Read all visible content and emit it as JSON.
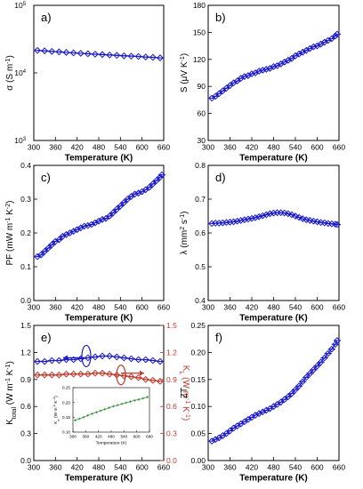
{
  "chart_data": [
    {
      "id": "a",
      "type": "line",
      "panel_label": "a)",
      "xlabel": "Temperature (K)",
      "ylabel": "σ (S m⁻¹)",
      "ylabel_html": "σ (S m<tspan baseline-shift='super' font-size='7'>-1</tspan>)",
      "xlim": [
        300,
        660
      ],
      "ylim": [
        1000,
        100000
      ],
      "yscale": "log",
      "xticks": [
        300,
        360,
        420,
        480,
        540,
        600,
        660
      ],
      "yticks": [
        {
          "value": 1000,
          "label": "10",
          "exp": "3"
        },
        {
          "value": 10000,
          "label": "10",
          "exp": "4"
        },
        {
          "value": 100000,
          "label": "10",
          "exp": "5"
        }
      ],
      "series": [
        {
          "marker": "diamond",
          "color": "#1a1acc",
          "x": [
            310,
            330,
            350,
            370,
            390,
            410,
            430,
            450,
            470,
            490,
            510,
            530,
            550,
            570,
            590,
            610,
            630,
            650
          ],
          "y": [
            21500,
            21200,
            20800,
            20500,
            20100,
            19800,
            19500,
            19200,
            18900,
            18700,
            18400,
            18200,
            17900,
            17700,
            17500,
            17200,
            17000,
            16700
          ]
        }
      ]
    },
    {
      "id": "b",
      "type": "line",
      "panel_label": "b)",
      "xlabel": "Temperature (K)",
      "ylabel": "S (μV K⁻¹)",
      "ylabel_html": "S (μV K<tspan baseline-shift='super' font-size='7'>-1</tspan>)",
      "xlim": [
        300,
        660
      ],
      "ylim": [
        30,
        180
      ],
      "xticks": [
        300,
        360,
        420,
        480,
        540,
        600,
        660
      ],
      "yticks": [
        {
          "value": 30,
          "label": "30"
        },
        {
          "value": 60,
          "label": "60"
        },
        {
          "value": 90,
          "label": "90"
        },
        {
          "value": 120,
          "label": "120"
        },
        {
          "value": 150,
          "label": "150"
        },
        {
          "value": 180,
          "label": "180"
        }
      ],
      "series": [
        {
          "marker": "diamond",
          "color": "#1a1acc",
          "x": [
            310,
            320,
            330,
            340,
            350,
            360,
            370,
            380,
            390,
            400,
            410,
            420,
            430,
            440,
            450,
            460,
            470,
            480,
            490,
            500,
            510,
            520,
            530,
            540,
            550,
            560,
            570,
            580,
            590,
            600,
            610,
            620,
            630,
            640,
            650,
            655
          ],
          "y": [
            77,
            79,
            82,
            85,
            88,
            91,
            94,
            96,
            99,
            101,
            102,
            104,
            105,
            107,
            108,
            109,
            110,
            112,
            113,
            115,
            117,
            119,
            121,
            124,
            126,
            128,
            130,
            132,
            134,
            135,
            137,
            139,
            141,
            143,
            146,
            148
          ]
        }
      ]
    },
    {
      "id": "c",
      "type": "line",
      "panel_label": "c)",
      "xlabel": "Temperature (K)",
      "ylabel": "PF (mW m⁻¹ K⁻²)",
      "ylabel_html": "PF (mW m<tspan baseline-shift='super' font-size='7'>-1</tspan> K<tspan baseline-shift='super' font-size='7'>-2</tspan>)",
      "xlim": [
        300,
        660
      ],
      "ylim": [
        0.0,
        0.4
      ],
      "xticks": [
        300,
        360,
        420,
        480,
        540,
        600,
        660
      ],
      "yticks": [
        {
          "value": 0.0,
          "label": "0.0"
        },
        {
          "value": 0.1,
          "label": "0.1"
        },
        {
          "value": 0.2,
          "label": "0.2"
        },
        {
          "value": 0.3,
          "label": "0.3"
        },
        {
          "value": 0.4,
          "label": "0.4"
        }
      ],
      "series": [
        {
          "marker": "diamond",
          "color": "#1a1acc",
          "x": [
            310,
            320,
            330,
            340,
            350,
            360,
            370,
            380,
            390,
            400,
            410,
            420,
            430,
            440,
            450,
            460,
            470,
            480,
            490,
            500,
            510,
            520,
            530,
            540,
            550,
            560,
            570,
            580,
            590,
            600,
            610,
            620,
            630,
            640,
            650,
            655
          ],
          "y": [
            0.13,
            0.135,
            0.145,
            0.155,
            0.165,
            0.175,
            0.18,
            0.19,
            0.195,
            0.2,
            0.205,
            0.21,
            0.215,
            0.22,
            0.222,
            0.225,
            0.23,
            0.235,
            0.24,
            0.243,
            0.25,
            0.26,
            0.27,
            0.28,
            0.29,
            0.3,
            0.308,
            0.315,
            0.318,
            0.322,
            0.328,
            0.335,
            0.345,
            0.355,
            0.365,
            0.372
          ]
        }
      ]
    },
    {
      "id": "d",
      "type": "line",
      "panel_label": "d)",
      "xlabel": "Temperature (K)",
      "ylabel": "λ (mm² s⁻¹)",
      "ylabel_html": "λ (mm<tspan baseline-shift='super' font-size='7'>2</tspan> s<tspan baseline-shift='super' font-size='7'>-1</tspan>)",
      "xlim": [
        300,
        660
      ],
      "ylim": [
        0.4,
        0.8
      ],
      "xticks": [
        300,
        360,
        420,
        480,
        540,
        600,
        660
      ],
      "yticks": [
        {
          "value": 0.4,
          "label": "0.4"
        },
        {
          "value": 0.5,
          "label": "0.5"
        },
        {
          "value": 0.6,
          "label": "0.6"
        },
        {
          "value": 0.7,
          "label": "0.7"
        },
        {
          "value": 0.8,
          "label": "0.8"
        }
      ],
      "series": [
        {
          "marker": "diamond",
          "color": "#1a1acc",
          "x": [
            310,
            320,
            330,
            340,
            350,
            360,
            370,
            380,
            390,
            400,
            410,
            420,
            430,
            440,
            450,
            460,
            470,
            480,
            490,
            500,
            510,
            520,
            530,
            540,
            550,
            560,
            570,
            580,
            590,
            600,
            610,
            620,
            630,
            640,
            650,
            655
          ],
          "y": [
            0.628,
            0.629,
            0.629,
            0.63,
            0.631,
            0.632,
            0.633,
            0.635,
            0.637,
            0.639,
            0.641,
            0.643,
            0.645,
            0.648,
            0.651,
            0.654,
            0.657,
            0.659,
            0.66,
            0.66,
            0.659,
            0.657,
            0.654,
            0.65,
            0.646,
            0.642,
            0.639,
            0.637,
            0.635,
            0.633,
            0.631,
            0.63,
            0.628,
            0.627,
            0.626,
            0.625
          ]
        }
      ]
    },
    {
      "id": "e",
      "type": "line",
      "panel_label": "e)",
      "xlabel": "Temperature (K)",
      "ylabel": "K_total (W m⁻¹ K⁻¹)",
      "ylabel_html": "K<tspan baseline-shift='sub' font-size='7'>total</tspan> (W m<tspan baseline-shift='super' font-size='7'>-1</tspan> K<tspan baseline-shift='super' font-size='7'>-1</tspan>)",
      "ylabel_right": "K_L (W m⁻¹ K⁻¹)",
      "ylabel_right_html": "K<tspan baseline-shift='sub' font-size='7'>L</tspan> (W m<tspan baseline-shift='super' font-size='7'>-1</tspan> K<tspan baseline-shift='super' font-size='7'>-1</tspan>)",
      "xlim": [
        300,
        660
      ],
      "ylim": [
        0.0,
        1.5
      ],
      "ylim_right": [
        0.0,
        1.5
      ],
      "xticks": [
        300,
        360,
        420,
        480,
        540,
        600,
        660
      ],
      "yticks": [
        {
          "value": 0.0,
          "label": "0.0"
        },
        {
          "value": 0.3,
          "label": "0.3"
        },
        {
          "value": 0.6,
          "label": "0.6"
        },
        {
          "value": 0.9,
          "label": "0.9"
        },
        {
          "value": 1.2,
          "label": "1.2"
        },
        {
          "value": 1.5,
          "label": "1.5"
        }
      ],
      "yticks_right": [
        {
          "value": 0.0,
          "label": "0.0"
        },
        {
          "value": 0.3,
          "label": "0.3"
        },
        {
          "value": 0.6,
          "label": "0.6"
        },
        {
          "value": 0.9,
          "label": "0.9"
        },
        {
          "value": 1.2,
          "label": "1.2"
        },
        {
          "value": 1.5,
          "label": "1.5"
        }
      ],
      "series": [
        {
          "marker": "diamond",
          "color": "#1a1acc",
          "axis": "left",
          "x": [
            310,
            330,
            350,
            370,
            390,
            410,
            430,
            450,
            470,
            490,
            510,
            530,
            550,
            570,
            590,
            610,
            630,
            650
          ],
          "y": [
            1.1,
            1.1,
            1.11,
            1.11,
            1.12,
            1.12,
            1.13,
            1.14,
            1.15,
            1.16,
            1.16,
            1.15,
            1.14,
            1.13,
            1.12,
            1.12,
            1.11,
            1.1
          ]
        },
        {
          "marker": "diamond",
          "color": "#c0392b",
          "axis": "right",
          "x": [
            310,
            330,
            350,
            370,
            390,
            410,
            430,
            450,
            470,
            490,
            510,
            530,
            550,
            570,
            590,
            610,
            630,
            650
          ],
          "y": [
            0.95,
            0.95,
            0.95,
            0.95,
            0.96,
            0.96,
            0.96,
            0.96,
            0.97,
            0.97,
            0.96,
            0.95,
            0.94,
            0.93,
            0.92,
            0.9,
            0.89,
            0.88
          ]
        }
      ],
      "inset": {
        "xlabel": "Temperature (K)",
        "ylabel": "K_e (W m⁻¹ K⁻¹)",
        "ylabel_html": "K<tspan baseline-shift='sub' font-size='4'>e</tspan> (W m<tspan baseline-shift='super' font-size='4'>-1</tspan> K<tspan baseline-shift='super' font-size='4'>-1</tspan>)",
        "xlim": [
          300,
          660
        ],
        "ylim": [
          0.1,
          0.25
        ],
        "xticks": [
          300,
          360,
          420,
          480,
          540,
          600,
          660
        ],
        "yticks": [
          {
            "value": 0.1,
            "label": "0.10"
          },
          {
            "value": 0.15,
            "label": "0.15"
          },
          {
            "value": 0.2,
            "label": "0.20"
          },
          {
            "value": 0.25,
            "label": "0.25"
          }
        ],
        "series": [
          {
            "marker": "cross",
            "color": "#2e8b2e",
            "x": [
              310,
              330,
              350,
              370,
              390,
              410,
              430,
              450,
              470,
              490,
              510,
              530,
              550,
              570,
              590,
              610,
              630,
              650
            ],
            "y": [
              0.14,
              0.145,
              0.15,
              0.156,
              0.162,
              0.167,
              0.172,
              0.177,
              0.182,
              0.187,
              0.191,
              0.195,
              0.199,
              0.203,
              0.207,
              0.21,
              0.214,
              0.218
            ]
          }
        ]
      }
    },
    {
      "id": "f",
      "type": "line",
      "panel_label": "f)",
      "xlabel": "Temperature (K)",
      "ylabel": "ZT",
      "ylabel_html": "ZT",
      "xlim": [
        300,
        660
      ],
      "ylim": [
        0.0,
        0.25
      ],
      "xticks": [
        300,
        360,
        420,
        480,
        540,
        600,
        660
      ],
      "yticks": [
        {
          "value": 0.0,
          "label": "0.00"
        },
        {
          "value": 0.05,
          "label": "0.05"
        },
        {
          "value": 0.1,
          "label": "0.10"
        },
        {
          "value": 0.15,
          "label": "0.15"
        },
        {
          "value": 0.2,
          "label": "0.20"
        },
        {
          "value": 0.25,
          "label": "0.25"
        }
      ],
      "series": [
        {
          "marker": "diamond",
          "color": "#1a1acc",
          "x": [
            310,
            320,
            330,
            340,
            350,
            360,
            370,
            380,
            390,
            400,
            410,
            420,
            430,
            440,
            450,
            460,
            470,
            480,
            490,
            500,
            510,
            520,
            530,
            540,
            550,
            560,
            570,
            580,
            590,
            600,
            610,
            620,
            630,
            640,
            650,
            655
          ],
          "y": [
            0.036,
            0.039,
            0.042,
            0.046,
            0.05,
            0.055,
            0.06,
            0.064,
            0.068,
            0.072,
            0.076,
            0.08,
            0.084,
            0.087,
            0.09,
            0.093,
            0.096,
            0.1,
            0.104,
            0.108,
            0.113,
            0.118,
            0.124,
            0.131,
            0.138,
            0.146,
            0.154,
            0.161,
            0.168,
            0.175,
            0.182,
            0.19,
            0.198,
            0.206,
            0.215,
            0.222
          ]
        }
      ]
    }
  ]
}
